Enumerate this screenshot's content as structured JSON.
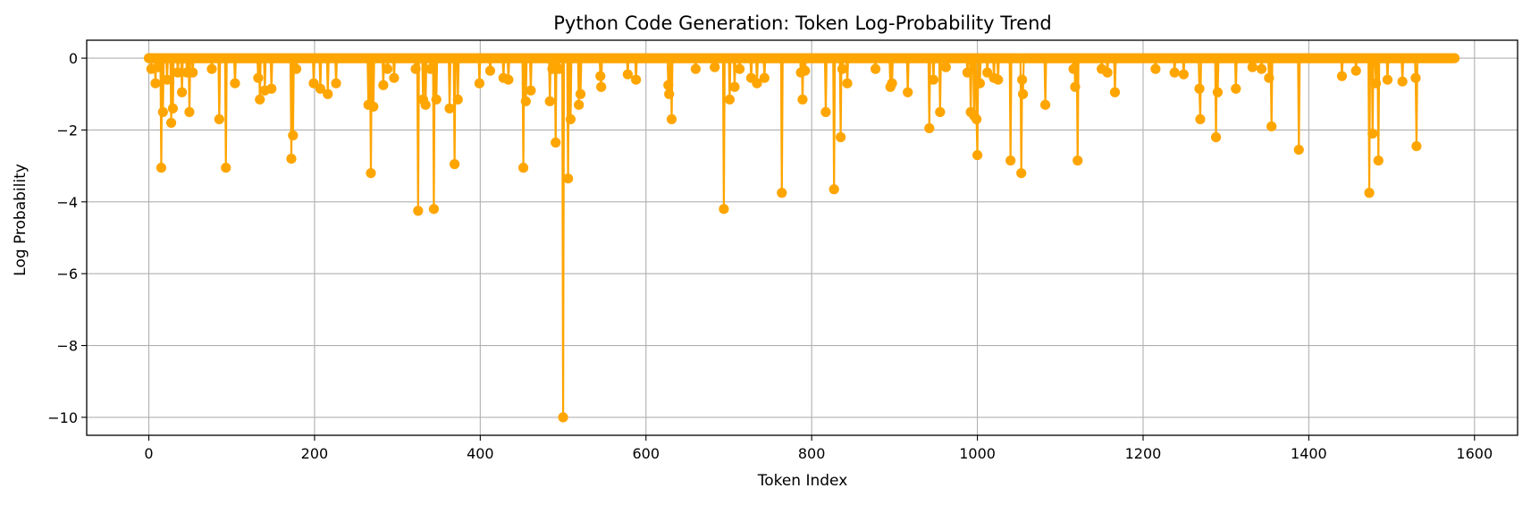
{
  "chart_data": {
    "type": "line",
    "title": "Python Code Generation: Token Log-Probability Trend",
    "xlabel": "Token Index",
    "ylabel": "Log Probability",
    "xlim": [
      -75,
      1652
    ],
    "ylim": [
      -10.5,
      0.5
    ],
    "xticks": [
      0,
      200,
      400,
      600,
      800,
      1000,
      1200,
      1400,
      1600
    ],
    "xtick_labels": [
      "0",
      "200",
      "400",
      "600",
      "800",
      "1000",
      "1200",
      "1400",
      "1600"
    ],
    "yticks": [
      0,
      -2,
      -4,
      -6,
      -8,
      -10
    ],
    "ytick_labels": [
      "0",
      "−2",
      "−4",
      "−6",
      "−8",
      "−10"
    ],
    "grid": true,
    "legend": "none",
    "n_points": 1577,
    "baseline_value": 0,
    "spikes": [
      {
        "x": 3,
        "y": -0.3
      },
      {
        "x": 8,
        "y": -0.7
      },
      {
        "x": 12,
        "y": -0.25
      },
      {
        "x": 15,
        "y": -3.05
      },
      {
        "x": 17,
        "y": -1.5
      },
      {
        "x": 22,
        "y": -0.6
      },
      {
        "x": 27,
        "y": -1.8
      },
      {
        "x": 29,
        "y": -1.4
      },
      {
        "x": 35,
        "y": -0.4
      },
      {
        "x": 40,
        "y": -0.95
      },
      {
        "x": 46,
        "y": -0.4
      },
      {
        "x": 49,
        "y": -1.5
      },
      {
        "x": 53,
        "y": -0.4
      },
      {
        "x": 76,
        "y": -0.3
      },
      {
        "x": 85,
        "y": -1.7
      },
      {
        "x": 93,
        "y": -3.05
      },
      {
        "x": 104,
        "y": -0.7
      },
      {
        "x": 132,
        "y": -0.55
      },
      {
        "x": 134,
        "y": -1.15
      },
      {
        "x": 140,
        "y": -0.9
      },
      {
        "x": 148,
        "y": -0.85
      },
      {
        "x": 172,
        "y": -2.8
      },
      {
        "x": 174,
        "y": -2.15
      },
      {
        "x": 178,
        "y": -0.3
      },
      {
        "x": 199,
        "y": -0.7
      },
      {
        "x": 207,
        "y": -0.85
      },
      {
        "x": 216,
        "y": -1.0
      },
      {
        "x": 226,
        "y": -0.7
      },
      {
        "x": 265,
        "y": -1.3
      },
      {
        "x": 268,
        "y": -3.2
      },
      {
        "x": 271,
        "y": -1.35
      },
      {
        "x": 283,
        "y": -0.75
      },
      {
        "x": 288,
        "y": -0.3
      },
      {
        "x": 296,
        "y": -0.55
      },
      {
        "x": 322,
        "y": -0.3
      },
      {
        "x": 325,
        "y": -4.25
      },
      {
        "x": 331,
        "y": -1.15
      },
      {
        "x": 334,
        "y": -1.3
      },
      {
        "x": 340,
        "y": -0.3
      },
      {
        "x": 344,
        "y": -4.2
      },
      {
        "x": 347,
        "y": -1.15
      },
      {
        "x": 363,
        "y": -1.4
      },
      {
        "x": 369,
        "y": -2.95
      },
      {
        "x": 373,
        "y": -1.15
      },
      {
        "x": 399,
        "y": -0.7
      },
      {
        "x": 412,
        "y": -0.35
      },
      {
        "x": 428,
        "y": -0.55
      },
      {
        "x": 434,
        "y": -0.6
      },
      {
        "x": 452,
        "y": -3.05
      },
      {
        "x": 455,
        "y": -1.2
      },
      {
        "x": 461,
        "y": -0.9
      },
      {
        "x": 484,
        "y": -1.2
      },
      {
        "x": 487,
        "y": -0.3
      },
      {
        "x": 491,
        "y": -2.35
      },
      {
        "x": 495,
        "y": -0.3
      },
      {
        "x": 500,
        "y": -10.0
      },
      {
        "x": 506,
        "y": -3.35
      },
      {
        "x": 509,
        "y": -1.7
      },
      {
        "x": 519,
        "y": -1.3
      },
      {
        "x": 521,
        "y": -1.0
      },
      {
        "x": 545,
        "y": -0.5
      },
      {
        "x": 546,
        "y": -0.8
      },
      {
        "x": 578,
        "y": -0.45
      },
      {
        "x": 588,
        "y": -0.6
      },
      {
        "x": 627,
        "y": -0.75
      },
      {
        "x": 628,
        "y": -1.0
      },
      {
        "x": 631,
        "y": -1.7
      },
      {
        "x": 660,
        "y": -0.3
      },
      {
        "x": 683,
        "y": -0.25
      },
      {
        "x": 694,
        "y": -4.2
      },
      {
        "x": 701,
        "y": -1.15
      },
      {
        "x": 707,
        "y": -0.8
      },
      {
        "x": 713,
        "y": -0.3
      },
      {
        "x": 727,
        "y": -0.55
      },
      {
        "x": 734,
        "y": -0.7
      },
      {
        "x": 743,
        "y": -0.55
      },
      {
        "x": 764,
        "y": -3.75
      },
      {
        "x": 787,
        "y": -0.4
      },
      {
        "x": 789,
        "y": -1.15
      },
      {
        "x": 792,
        "y": -0.35
      },
      {
        "x": 817,
        "y": -1.5
      },
      {
        "x": 827,
        "y": -3.65
      },
      {
        "x": 835,
        "y": -2.2
      },
      {
        "x": 837,
        "y": -0.3
      },
      {
        "x": 843,
        "y": -0.7
      },
      {
        "x": 877,
        "y": -0.3
      },
      {
        "x": 895,
        "y": -0.8
      },
      {
        "x": 897,
        "y": -0.7
      },
      {
        "x": 916,
        "y": -0.95
      },
      {
        "x": 942,
        "y": -1.95
      },
      {
        "x": 947,
        "y": -0.6
      },
      {
        "x": 955,
        "y": -1.5
      },
      {
        "x": 962,
        "y": -0.25
      },
      {
        "x": 988,
        "y": -0.4
      },
      {
        "x": 992,
        "y": -1.5
      },
      {
        "x": 996,
        "y": -1.6
      },
      {
        "x": 999,
        "y": -1.7
      },
      {
        "x": 1000,
        "y": -2.7
      },
      {
        "x": 1003,
        "y": -0.7
      },
      {
        "x": 1012,
        "y": -0.4
      },
      {
        "x": 1020,
        "y": -0.55
      },
      {
        "x": 1025,
        "y": -0.6
      },
      {
        "x": 1040,
        "y": -2.85
      },
      {
        "x": 1053,
        "y": -3.2
      },
      {
        "x": 1054,
        "y": -0.6
      },
      {
        "x": 1055,
        "y": -1.0
      },
      {
        "x": 1082,
        "y": -1.3
      },
      {
        "x": 1116,
        "y": -0.3
      },
      {
        "x": 1118,
        "y": -0.8
      },
      {
        "x": 1121,
        "y": -2.85
      },
      {
        "x": 1150,
        "y": -0.3
      },
      {
        "x": 1157,
        "y": -0.4
      },
      {
        "x": 1166,
        "y": -0.95
      },
      {
        "x": 1215,
        "y": -0.3
      },
      {
        "x": 1238,
        "y": -0.4
      },
      {
        "x": 1249,
        "y": -0.45
      },
      {
        "x": 1268,
        "y": -0.85
      },
      {
        "x": 1269,
        "y": -1.7
      },
      {
        "x": 1288,
        "y": -2.2
      },
      {
        "x": 1290,
        "y": -0.95
      },
      {
        "x": 1312,
        "y": -0.85
      },
      {
        "x": 1332,
        "y": -0.25
      },
      {
        "x": 1343,
        "y": -0.3
      },
      {
        "x": 1352,
        "y": -0.55
      },
      {
        "x": 1355,
        "y": -1.9
      },
      {
        "x": 1388,
        "y": -2.55
      },
      {
        "x": 1440,
        "y": -0.5
      },
      {
        "x": 1457,
        "y": -0.35
      },
      {
        "x": 1473,
        "y": -3.75
      },
      {
        "x": 1477,
        "y": -2.1
      },
      {
        "x": 1484,
        "y": -2.85
      },
      {
        "x": 1481,
        "y": -0.7
      },
      {
        "x": 1495,
        "y": -0.6
      },
      {
        "x": 1513,
        "y": -0.65
      },
      {
        "x": 1530,
        "y": -2.45
      },
      {
        "x": 1529,
        "y": -0.55
      }
    ],
    "style": {
      "color": "#ffa500"
    }
  }
}
